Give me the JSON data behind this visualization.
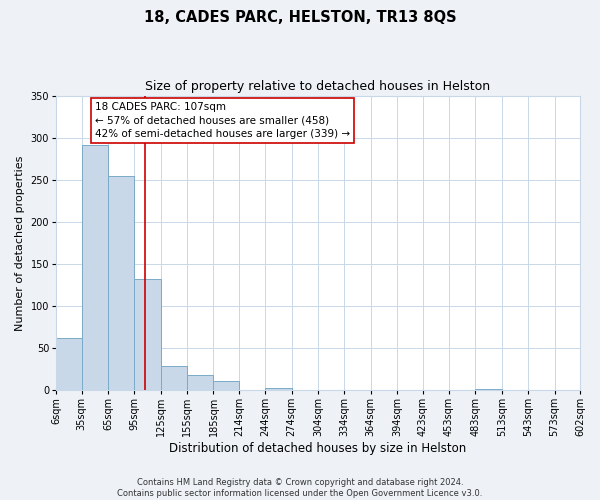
{
  "title": "18, CADES PARC, HELSTON, TR13 8QS",
  "subtitle": "Size of property relative to detached houses in Helston",
  "xlabel": "Distribution of detached houses by size in Helston",
  "ylabel": "Number of detached properties",
  "footer_line1": "Contains HM Land Registry data © Crown copyright and database right 2024.",
  "footer_line2": "Contains public sector information licensed under the Open Government Licence v3.0.",
  "bin_edges": [
    6,
    35,
    65,
    95,
    125,
    155,
    185,
    214,
    244,
    274,
    304,
    334,
    364,
    394,
    423,
    453,
    483,
    513,
    543,
    573,
    602
  ],
  "bin_labels": [
    "6sqm",
    "35sqm",
    "65sqm",
    "95sqm",
    "125sqm",
    "155sqm",
    "185sqm",
    "214sqm",
    "244sqm",
    "274sqm",
    "304sqm",
    "334sqm",
    "364sqm",
    "394sqm",
    "423sqm",
    "453sqm",
    "483sqm",
    "513sqm",
    "543sqm",
    "573sqm",
    "602sqm"
  ],
  "bar_heights": [
    62,
    291,
    254,
    132,
    29,
    18,
    11,
    0,
    3,
    0,
    0,
    0,
    0,
    0,
    0,
    0,
    1,
    0,
    0,
    0
  ],
  "bar_color": "#c8d8e8",
  "bar_edge_color": "#7aaac8",
  "property_line_x": 107,
  "property_line_color": "#cc0000",
  "annotation_text": "18 CADES PARC: 107sqm\n← 57% of detached houses are smaller (458)\n42% of semi-detached houses are larger (339) →",
  "annotation_box_color": "#ffffff",
  "annotation_box_edge_color": "#cc0000",
  "ylim": [
    0,
    350
  ],
  "yticks": [
    0,
    50,
    100,
    150,
    200,
    250,
    300,
    350
  ],
  "background_color": "#eef2f7",
  "plot_background_color": "#ffffff",
  "grid_color": "#c8d8e8",
  "title_fontsize": 10.5,
  "subtitle_fontsize": 9,
  "xlabel_fontsize": 8.5,
  "ylabel_fontsize": 8,
  "annotation_fontsize": 7.5,
  "tick_fontsize": 7,
  "footer_fontsize": 6
}
